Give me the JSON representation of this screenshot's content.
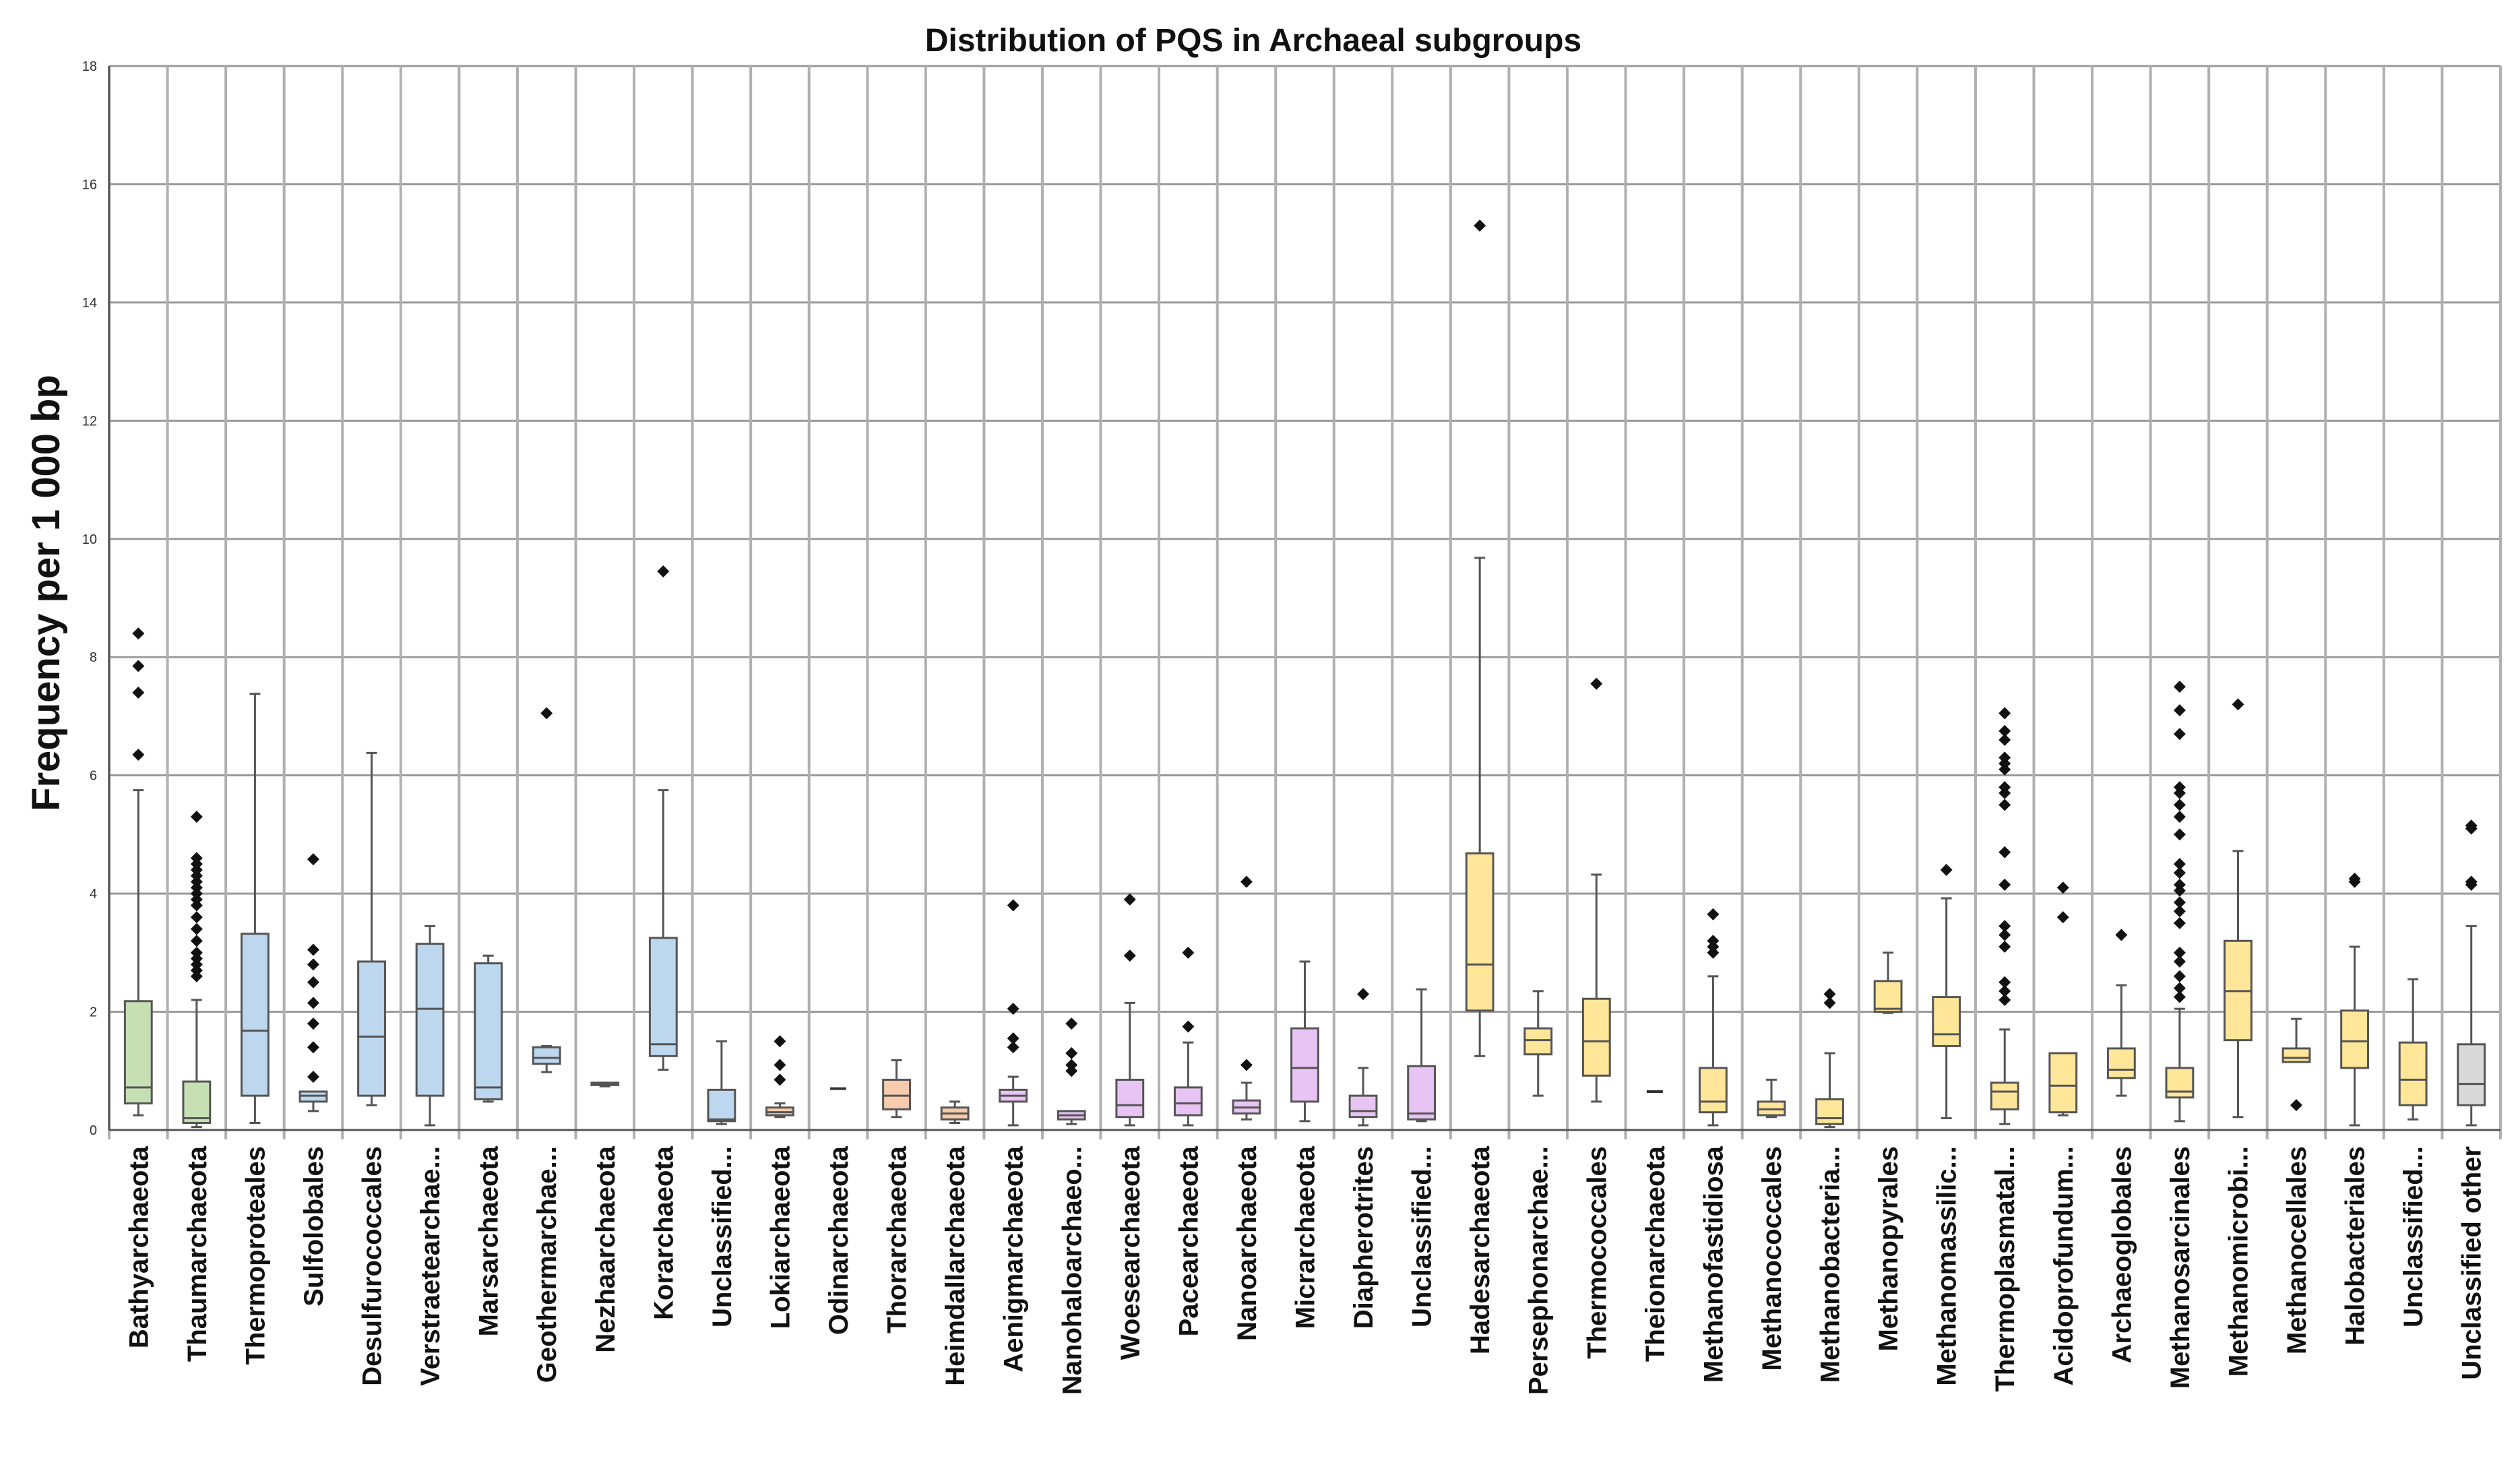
{
  "chart_data": {
    "type": "boxplot",
    "title": "Distribution of PQS in Archaeal subgroups",
    "xlabel": "",
    "ylabel": "Frequency per 1 000 bp",
    "ylim": [
      0,
      18
    ],
    "yticks": [
      0,
      2,
      4,
      6,
      8,
      10,
      12,
      14,
      16,
      18
    ],
    "grid": true,
    "group_colors": {
      "green": "#c6e0b4",
      "blue": "#bdd7ee",
      "orange": "#f8cbad",
      "purple": "#e8c4f4",
      "yellow": "#ffe699",
      "gray": "#d9d9d9"
    },
    "series": [
      {
        "name": "Bathyarchaeota",
        "group": "green",
        "min": 0.25,
        "q1": 0.45,
        "median": 0.72,
        "q3": 2.18,
        "max": 5.75,
        "outliers": [
          6.35,
          7.4,
          7.85,
          8.4
        ]
      },
      {
        "name": "Thaumarchaeota",
        "group": "green",
        "min": 0.05,
        "q1": 0.12,
        "median": 0.2,
        "q3": 0.82,
        "max": 2.2,
        "outliers": [
          2.6,
          2.7,
          2.8,
          2.9,
          3.0,
          3.2,
          3.4,
          3.6,
          3.8,
          3.9,
          4.0,
          4.1,
          4.2,
          4.3,
          4.4,
          4.5,
          4.6,
          5.3
        ]
      },
      {
        "name": "Thermoproteales",
        "group": "blue",
        "min": 0.12,
        "q1": 0.58,
        "median": 1.68,
        "q3": 3.32,
        "max": 7.38,
        "outliers": []
      },
      {
        "name": "Sulfolobales",
        "group": "blue",
        "min": 0.32,
        "q1": 0.48,
        "median": 0.58,
        "q3": 0.65,
        "max": 0.65,
        "outliers": [
          0.9,
          1.4,
          1.8,
          2.15,
          2.5,
          2.8,
          3.05,
          4.58
        ]
      },
      {
        "name": "Desulfurococcales",
        "group": "blue",
        "min": 0.42,
        "q1": 0.58,
        "median": 1.58,
        "q3": 2.85,
        "max": 6.38,
        "outliers": []
      },
      {
        "name": "Verstraetearchae...",
        "group": "blue",
        "min": 0.08,
        "q1": 0.58,
        "median": 2.05,
        "q3": 3.15,
        "max": 3.45,
        "outliers": []
      },
      {
        "name": "Marsarchaeota",
        "group": "blue",
        "min": 0.48,
        "q1": 0.52,
        "median": 0.72,
        "q3": 2.82,
        "max": 2.95,
        "outliers": []
      },
      {
        "name": "Geothermarchae...",
        "group": "blue",
        "min": 0.98,
        "q1": 1.12,
        "median": 1.22,
        "q3": 1.4,
        "max": 1.42,
        "outliers": [
          7.05
        ]
      },
      {
        "name": "Nezhaarchaeota",
        "group": "blue",
        "min": 0.74,
        "q1": 0.76,
        "median": 0.78,
        "q3": 0.8,
        "max": 0.8,
        "outliers": []
      },
      {
        "name": "Korarchaeota",
        "group": "blue",
        "min": 1.02,
        "q1": 1.25,
        "median": 1.45,
        "q3": 3.25,
        "max": 5.75,
        "outliers": [
          9.45
        ]
      },
      {
        "name": "Unclassified...",
        "group": "blue",
        "min": 0.1,
        "q1": 0.15,
        "median": 0.18,
        "q3": 0.68,
        "max": 1.5,
        "outliers": []
      },
      {
        "name": "Lokiarchaeota",
        "group": "orange",
        "min": 0.22,
        "q1": 0.25,
        "median": 0.3,
        "q3": 0.38,
        "max": 0.45,
        "outliers": [
          0.85,
          1.1,
          1.5
        ]
      },
      {
        "name": "Odinarchaeota",
        "group": "orange",
        "min": 0.7,
        "q1": 0.7,
        "median": 0.7,
        "q3": 0.7,
        "max": 0.7,
        "outliers": []
      },
      {
        "name": "Thorarchaeota",
        "group": "orange",
        "min": 0.22,
        "q1": 0.35,
        "median": 0.58,
        "q3": 0.85,
        "max": 1.18,
        "outliers": []
      },
      {
        "name": "Heimdallarchaeota",
        "group": "orange",
        "min": 0.12,
        "q1": 0.18,
        "median": 0.28,
        "q3": 0.38,
        "max": 0.48,
        "outliers": []
      },
      {
        "name": "Aenigmarchaeota",
        "group": "purple",
        "min": 0.08,
        "q1": 0.48,
        "median": 0.58,
        "q3": 0.68,
        "max": 0.9,
        "outliers": [
          1.4,
          1.55,
          2.05,
          3.8
        ]
      },
      {
        "name": "Nanohaloarchaeo...",
        "group": "purple",
        "min": 0.1,
        "q1": 0.18,
        "median": 0.25,
        "q3": 0.32,
        "max": 0.32,
        "outliers": [
          1.0,
          1.1,
          1.3,
          1.8
        ]
      },
      {
        "name": "Woesearchaeota",
        "group": "purple",
        "min": 0.08,
        "q1": 0.22,
        "median": 0.42,
        "q3": 0.85,
        "max": 2.15,
        "outliers": [
          2.95,
          3.9
        ]
      },
      {
        "name": "Pacearchaeota",
        "group": "purple",
        "min": 0.08,
        "q1": 0.25,
        "median": 0.45,
        "q3": 0.72,
        "max": 1.48,
        "outliers": [
          1.75,
          3.0
        ]
      },
      {
        "name": "Nanoarchaeota",
        "group": "purple",
        "min": 0.18,
        "q1": 0.28,
        "median": 0.38,
        "q3": 0.5,
        "max": 0.8,
        "outliers": [
          1.1,
          4.2
        ]
      },
      {
        "name": "Micrarchaeota",
        "group": "purple",
        "min": 0.15,
        "q1": 0.48,
        "median": 1.05,
        "q3": 1.72,
        "max": 2.85,
        "outliers": []
      },
      {
        "name": "Diapherotrites",
        "group": "purple",
        "min": 0.08,
        "q1": 0.22,
        "median": 0.32,
        "q3": 0.58,
        "max": 1.05,
        "outliers": [
          2.3
        ]
      },
      {
        "name": "Unclassified...",
        "group": "purple",
        "min": 0.15,
        "q1": 0.18,
        "median": 0.28,
        "q3": 1.08,
        "max": 2.38,
        "outliers": []
      },
      {
        "name": "Hadesarchaeota",
        "group": "yellow",
        "min": 1.25,
        "q1": 2.02,
        "median": 2.8,
        "q3": 4.68,
        "max": 9.68,
        "outliers": [
          15.3
        ]
      },
      {
        "name": "Persephonarchae...",
        "group": "yellow",
        "min": 0.58,
        "q1": 1.28,
        "median": 1.52,
        "q3": 1.72,
        "max": 2.35,
        "outliers": []
      },
      {
        "name": "Thermococcales",
        "group": "yellow",
        "min": 0.48,
        "q1": 0.92,
        "median": 1.5,
        "q3": 2.22,
        "max": 4.32,
        "outliers": [
          7.55
        ]
      },
      {
        "name": "Theionarchaeota",
        "group": "yellow",
        "min": 0.65,
        "q1": 0.65,
        "median": 0.65,
        "q3": 0.65,
        "max": 0.65,
        "outliers": []
      },
      {
        "name": "Methanofastidiosa",
        "group": "yellow",
        "min": 0.08,
        "q1": 0.3,
        "median": 0.48,
        "q3": 1.05,
        "max": 2.6,
        "outliers": [
          3.0,
          3.1,
          3.2,
          3.65
        ]
      },
      {
        "name": "Methanococcales",
        "group": "yellow",
        "min": 0.22,
        "q1": 0.25,
        "median": 0.35,
        "q3": 0.48,
        "max": 0.85,
        "outliers": []
      },
      {
        "name": "Methanobacteria...",
        "group": "yellow",
        "min": 0.05,
        "q1": 0.1,
        "median": 0.2,
        "q3": 0.52,
        "max": 1.3,
        "outliers": [
          2.15,
          2.3
        ]
      },
      {
        "name": "Methanopyrales",
        "group": "yellow",
        "min": 1.98,
        "q1": 2.0,
        "median": 2.05,
        "q3": 2.52,
        "max": 3.0,
        "outliers": []
      },
      {
        "name": "Methanomassilic...",
        "group": "yellow",
        "min": 0.2,
        "q1": 1.42,
        "median": 1.62,
        "q3": 2.25,
        "max": 3.92,
        "outliers": [
          4.4
        ]
      },
      {
        "name": "Thermoplasmatal...",
        "group": "yellow",
        "min": 0.1,
        "q1": 0.35,
        "median": 0.65,
        "q3": 0.8,
        "max": 1.7,
        "outliers": [
          2.2,
          2.35,
          2.5,
          3.1,
          3.3,
          3.45,
          4.15,
          4.7,
          5.5,
          5.7,
          5.8,
          6.1,
          6.2,
          6.3,
          6.6,
          6.75,
          7.05
        ]
      },
      {
        "name": "Acidoprofundum...",
        "group": "yellow",
        "min": 0.25,
        "q1": 0.3,
        "median": 0.75,
        "q3": 1.3,
        "max": 1.3,
        "outliers": [
          3.6,
          4.1
        ]
      },
      {
        "name": "Archaeoglobales",
        "group": "yellow",
        "min": 0.58,
        "q1": 0.88,
        "median": 1.02,
        "q3": 1.38,
        "max": 2.45,
        "outliers": [
          3.3
        ]
      },
      {
        "name": "Methanosarcinales",
        "group": "yellow",
        "min": 0.15,
        "q1": 0.55,
        "median": 0.65,
        "q3": 1.05,
        "max": 2.05,
        "outliers": [
          2.25,
          2.4,
          2.6,
          2.85,
          3.0,
          3.5,
          3.7,
          3.85,
          4.05,
          4.15,
          4.35,
          4.5,
          5.0,
          5.3,
          5.5,
          5.7,
          5.8,
          6.7,
          7.1,
          7.5
        ]
      },
      {
        "name": "Methanomicrobi...",
        "group": "yellow",
        "min": 0.22,
        "q1": 1.52,
        "median": 2.35,
        "q3": 3.2,
        "max": 4.72,
        "outliers": [
          7.2
        ]
      },
      {
        "name": "Methanocellales",
        "group": "yellow",
        "min": 1.15,
        "q1": 1.15,
        "median": 1.22,
        "q3": 1.38,
        "max": 1.88,
        "outliers": [
          0.42
        ]
      },
      {
        "name": "Halobacteriales",
        "group": "yellow",
        "min": 0.08,
        "q1": 1.05,
        "median": 1.5,
        "q3": 2.02,
        "max": 3.1,
        "outliers": [
          4.2,
          4.25
        ]
      },
      {
        "name": "Unclassified...",
        "group": "yellow",
        "min": 0.18,
        "q1": 0.42,
        "median": 0.85,
        "q3": 1.48,
        "max": 2.55,
        "outliers": []
      },
      {
        "name": "Unclassified other",
        "group": "gray",
        "min": 0.08,
        "q1": 0.42,
        "median": 0.78,
        "q3": 1.45,
        "max": 3.45,
        "outliers": [
          4.15,
          4.2,
          5.1,
          5.15
        ]
      }
    ]
  }
}
